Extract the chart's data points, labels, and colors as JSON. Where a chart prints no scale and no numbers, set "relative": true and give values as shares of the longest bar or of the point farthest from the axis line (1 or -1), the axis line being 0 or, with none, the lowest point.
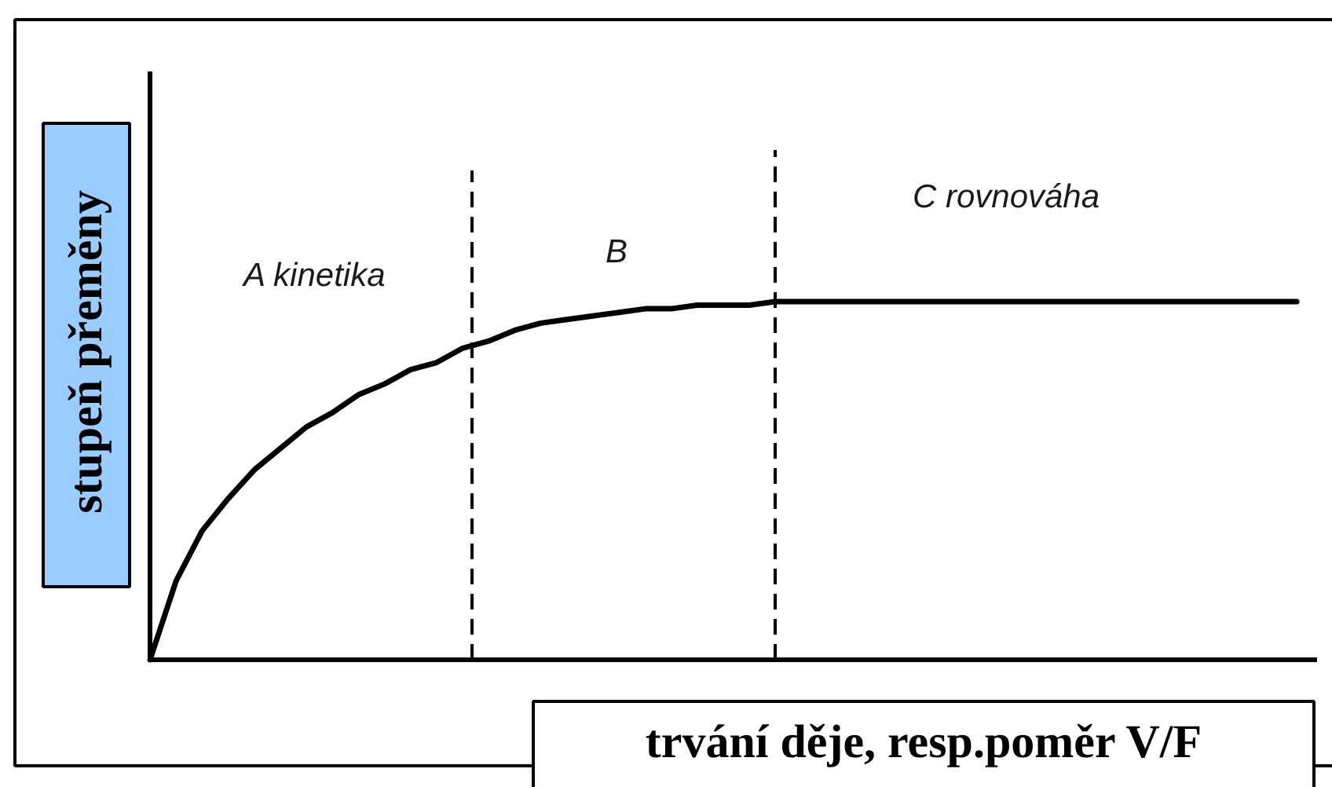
{
  "chart_data": {
    "type": "line",
    "relative": true,
    "xlabel": "trvání děje, resp.poměr V/F",
    "ylabel": "stupeň přeměny",
    "annotations": [
      "A kinetika",
      "B",
      "C rovnováha"
    ],
    "categories": [
      null,
      null,
      null,
      null,
      null,
      null,
      null,
      null,
      null,
      null,
      null,
      null,
      null,
      null,
      null,
      null,
      null,
      null,
      null,
      null,
      null,
      null,
      null,
      null,
      null,
      null,
      null,
      null,
      null,
      null,
      null,
      null,
      null,
      null,
      null,
      null,
      null,
      null,
      null,
      null,
      null,
      null,
      null,
      null,
      null
    ],
    "series": [
      {
        "color": "#000000",
        "values": [
          0,
          0.22,
          0.36,
          0.45,
          0.53,
          0.59,
          0.65,
          0.69,
          0.74,
          0.77,
          0.81,
          0.83,
          0.87,
          0.89,
          0.92,
          0.94,
          0.95,
          0.96,
          0.97,
          0.98,
          0.98,
          0.99,
          0.99,
          0.99,
          1,
          1,
          1,
          1,
          1,
          1,
          1,
          1,
          1,
          1,
          1,
          1,
          1,
          1,
          1,
          1,
          1,
          1,
          1,
          1,
          1
        ]
      }
    ]
  }
}
